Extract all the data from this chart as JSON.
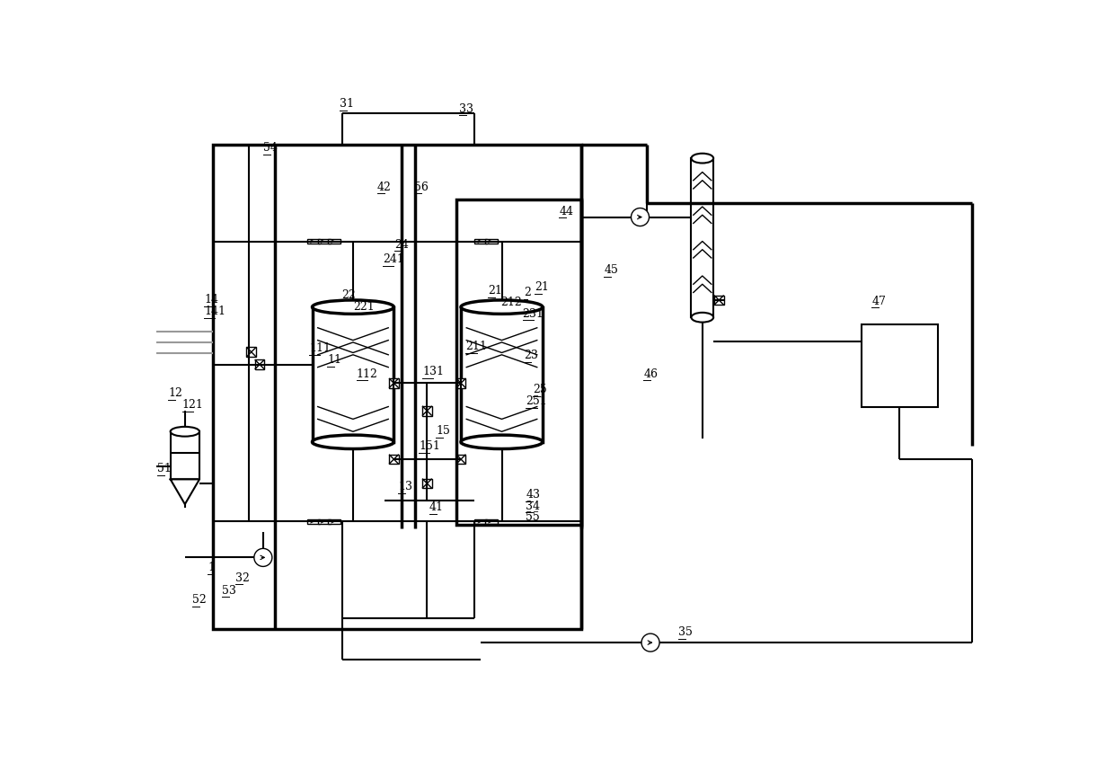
{
  "bg": "#ffffff",
  "lc": "#000000",
  "lw": 1.5,
  "lw2": 2.5,
  "lw3": 1.0,
  "fw": 12.4,
  "fh": 8.58
}
